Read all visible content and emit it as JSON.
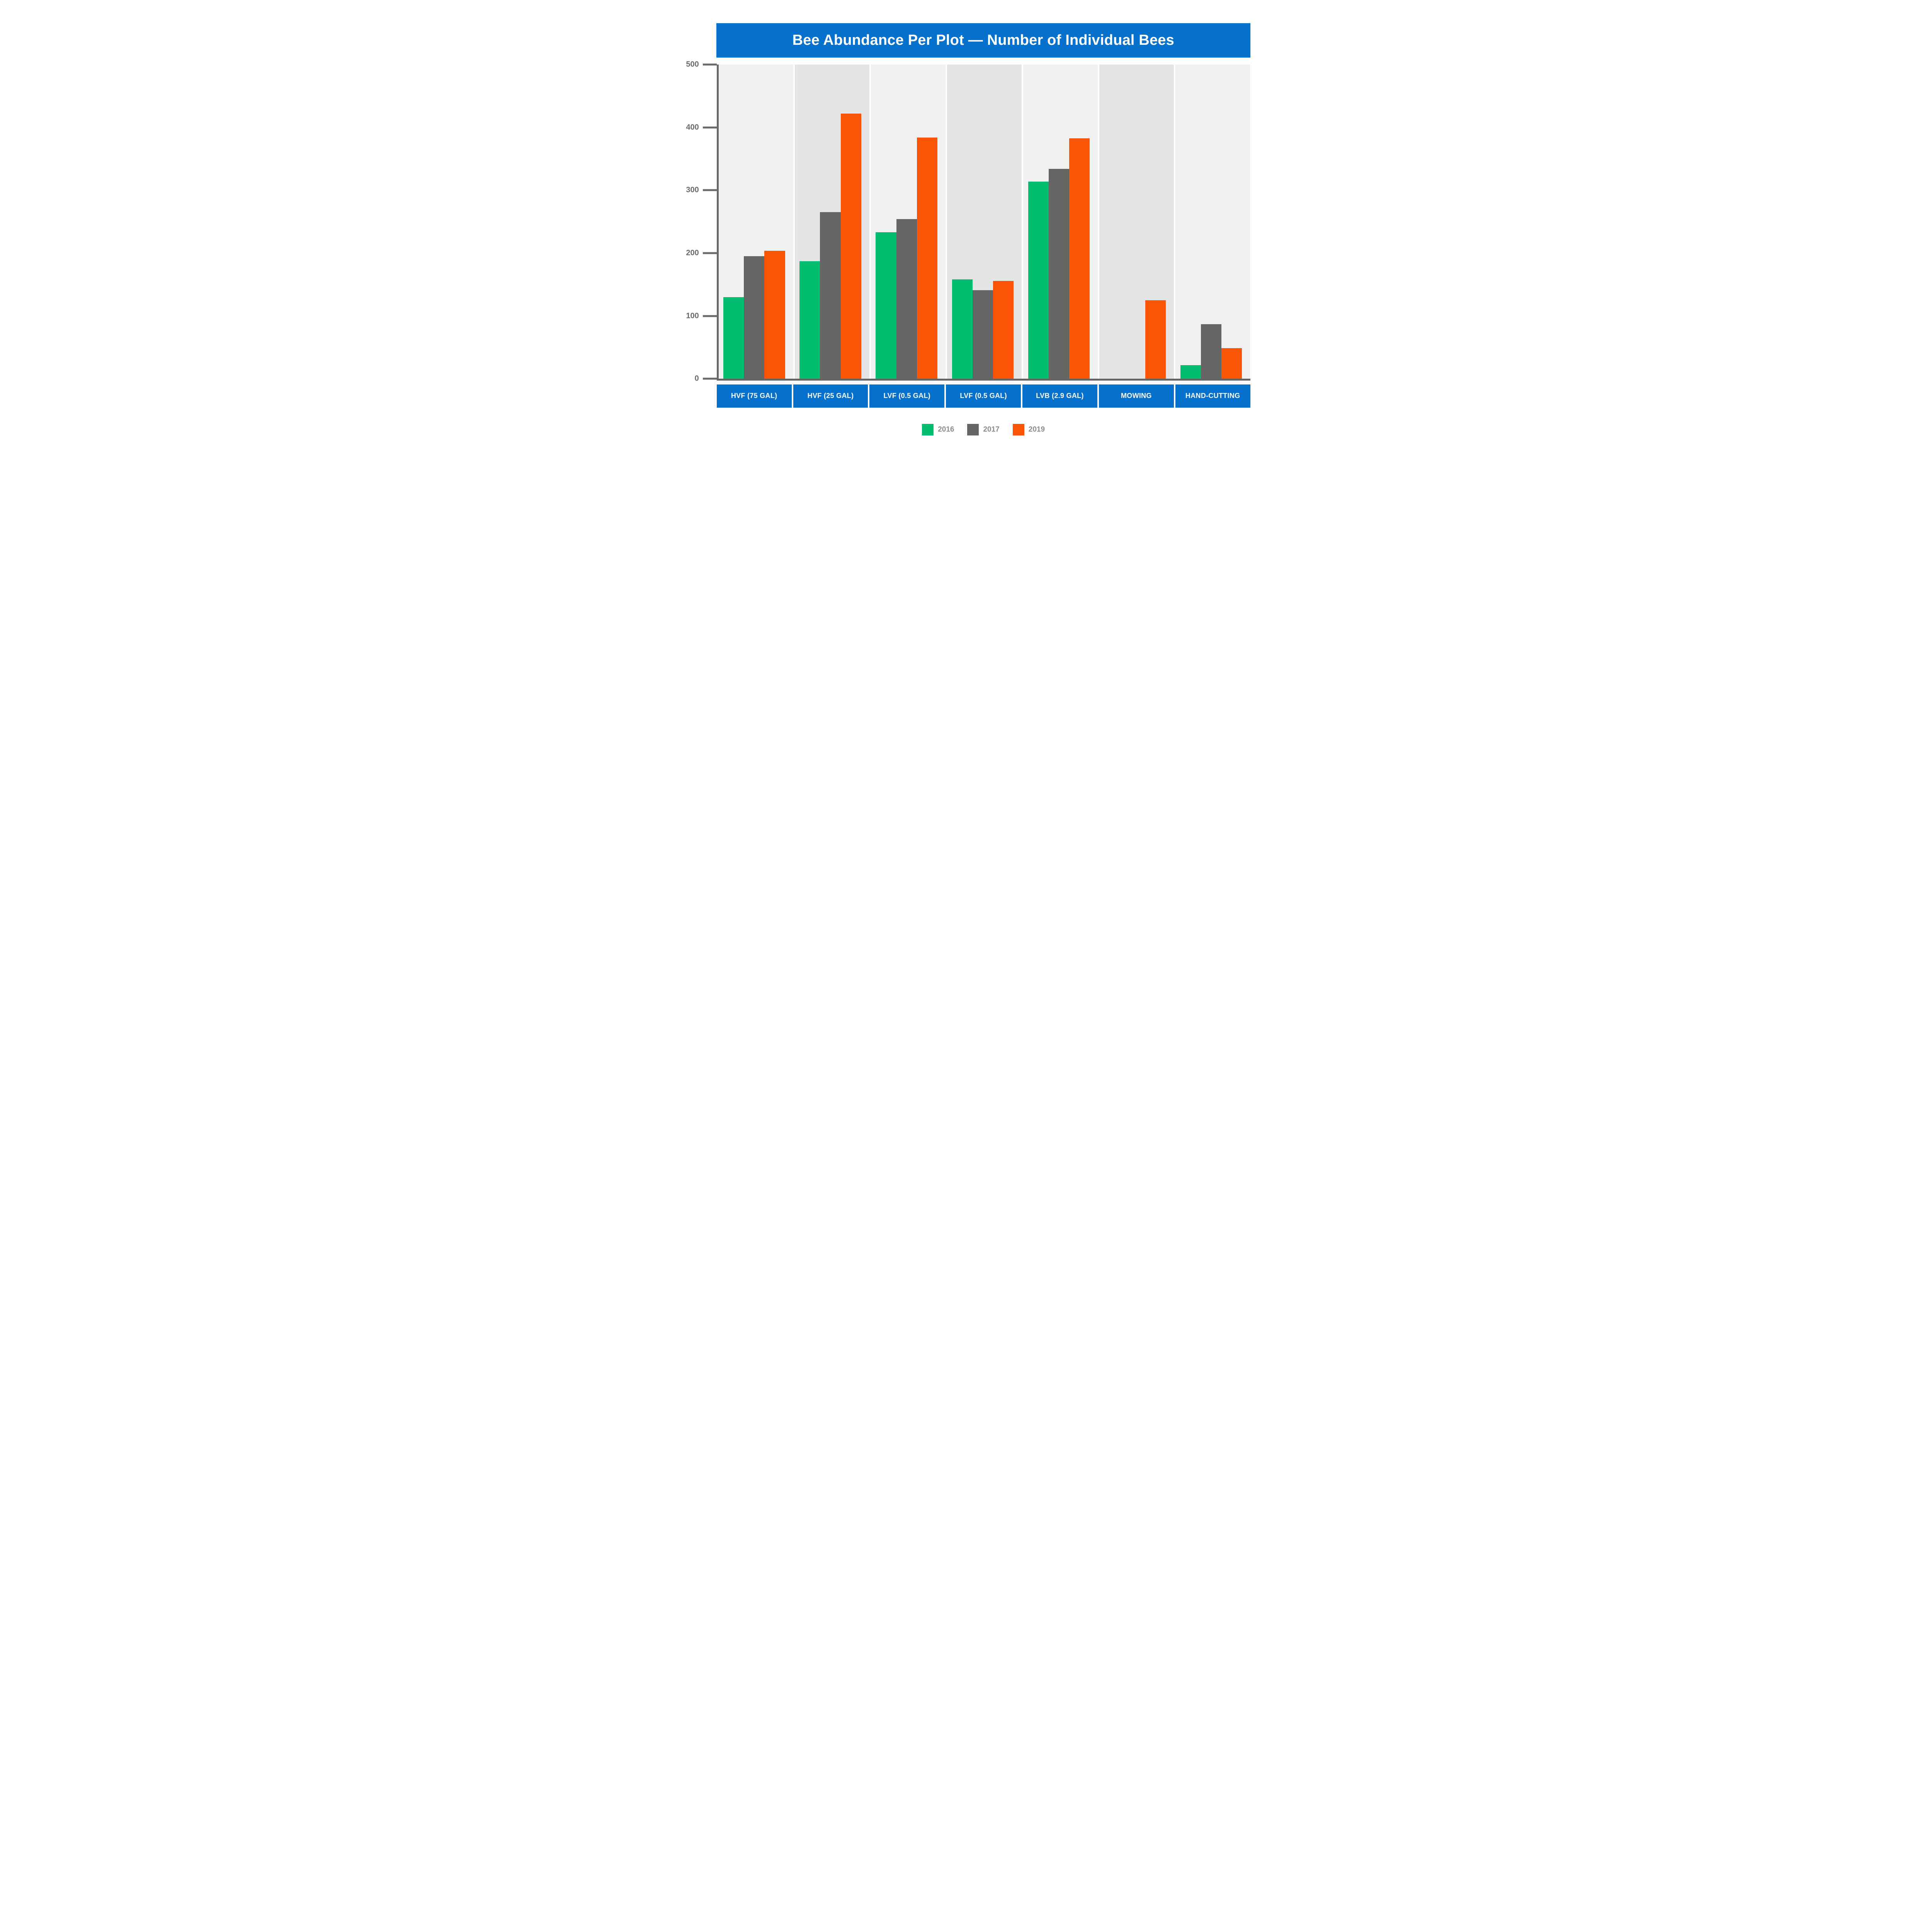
{
  "title": "Bee Abundance Per Plot — Number of Individual Bees",
  "colors": {
    "banner_blue": "#0671cd",
    "green": "#00bd6f",
    "gray": "#656565",
    "orange": "#fb5405",
    "panel_light": "#f1f1f2",
    "panel_dark": "#e5e5e6",
    "axis": "#6a6a6a",
    "tick_label": "#6b6b6b",
    "legend_text": "#8d8d8d",
    "baseline": "#656565",
    "title_text": "#ffffff"
  },
  "y_axis": {
    "min": 0,
    "max": 500,
    "ticks": [
      500,
      400,
      300,
      200,
      100,
      0
    ]
  },
  "chart_data": {
    "type": "bar",
    "title": "Bee Abundance Per Plot — Number of Individual Bees",
    "categories": [
      "HVF (75 GAL)",
      "HVF (25 GAL)",
      "LVF (0.5 GAL)",
      "LVF (0.5 GAL)",
      "LVB (2.9 GAL)",
      "MOWING",
      "HAND-CUTTING"
    ],
    "series": [
      {
        "name": "2016",
        "color_key": "green",
        "values": [
          130,
          187,
          233,
          158,
          314,
          0,
          22
        ]
      },
      {
        "name": "2017",
        "color_key": "gray",
        "values": [
          195,
          265,
          254,
          141,
          334,
          0,
          87
        ]
      },
      {
        "name": "2019",
        "color_key": "orange",
        "values": [
          204,
          422,
          384,
          156,
          383,
          125,
          49
        ]
      }
    ],
    "xlabel": "",
    "ylabel": "",
    "ylim": [
      0,
      500
    ],
    "grid": false,
    "legend_position": "bottom",
    "panel_shading": "alternating"
  },
  "legend": {
    "items": [
      {
        "label": "2016",
        "color_key": "green"
      },
      {
        "label": "2017",
        "color_key": "gray"
      },
      {
        "label": "2019",
        "color_key": "orange"
      }
    ]
  }
}
